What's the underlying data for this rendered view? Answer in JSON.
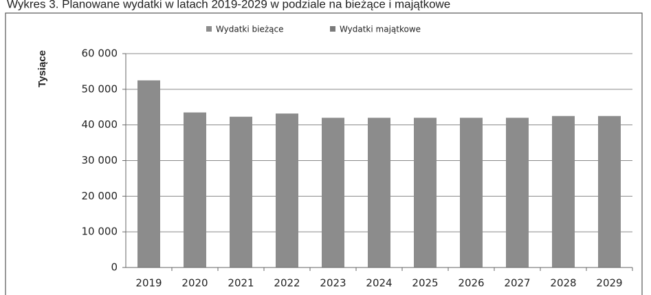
{
  "chart_data": {
    "type": "bar",
    "stacked": true,
    "title": "Wykres 3. Planowane wydatki w latach 2019-2029 w podziale na bieżące i majątkowe",
    "y_label": "Tysiące",
    "categories": [
      "2019",
      "2020",
      "2021",
      "2022",
      "2023",
      "2024",
      "2025",
      "2026",
      "2027",
      "2028",
      "2029"
    ],
    "series": [
      {
        "name": "Wydatki bieżące",
        "color": "#8c8c8c",
        "values": [
          52500,
          43500,
          42300,
          43200,
          42000,
          42000,
          42000,
          42000,
          42000,
          42500,
          42500
        ]
      },
      {
        "name": "Wydatki majątkowe",
        "color": "#7a7a7a",
        "values": [
          0,
          0,
          0,
          0,
          0,
          0,
          0,
          0,
          0,
          0,
          0
        ]
      }
    ],
    "ylim": [
      0,
      60000
    ],
    "yticks": [
      0,
      {
        "value": 10000,
        "label": "10 000"
      },
      {
        "value": 20000,
        "label": "20 000"
      },
      {
        "value": 30000,
        "label": "30 000"
      },
      {
        "value": 40000,
        "label": "40 000"
      },
      {
        "value": 50000,
        "label": "50 000"
      },
      {
        "value": 60000,
        "label": "60 000"
      }
    ],
    "grid": true,
    "legend": "top"
  }
}
